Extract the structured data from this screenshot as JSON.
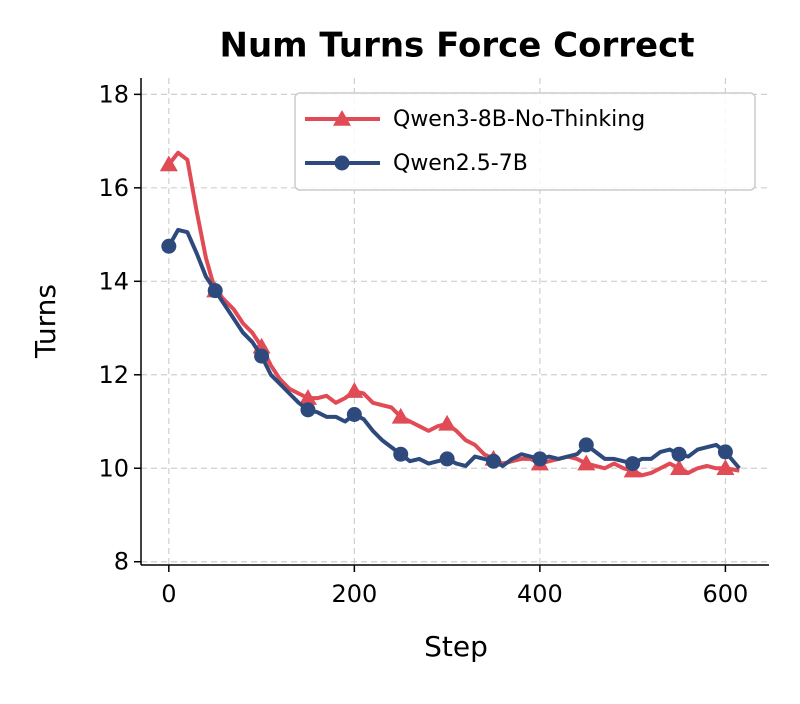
{
  "chart_data": {
    "type": "line",
    "title": "Num Turns Force Correct",
    "xlabel": "Step",
    "ylabel": "Turns",
    "x": [
      0,
      10,
      20,
      30,
      40,
      50,
      60,
      70,
      80,
      90,
      100,
      110,
      120,
      130,
      140,
      150,
      160,
      170,
      180,
      190,
      200,
      210,
      220,
      230,
      240,
      250,
      260,
      270,
      280,
      290,
      300,
      310,
      320,
      330,
      340,
      350,
      360,
      370,
      380,
      390,
      400,
      410,
      420,
      430,
      440,
      450,
      460,
      470,
      480,
      490,
      500,
      510,
      520,
      530,
      540,
      550,
      560,
      570,
      580,
      590,
      600,
      615
    ],
    "series": [
      {
        "name": "Qwen3-8B-No-Thinking",
        "color": "#e04b55",
        "marker": "triangle",
        "values": [
          16.5,
          16.75,
          16.6,
          15.5,
          14.5,
          13.8,
          13.6,
          13.4,
          13.1,
          12.9,
          12.6,
          12.2,
          11.9,
          11.7,
          11.6,
          11.5,
          11.5,
          11.55,
          11.4,
          11.5,
          11.65,
          11.6,
          11.4,
          11.35,
          11.3,
          11.1,
          11.0,
          10.9,
          10.8,
          10.9,
          10.95,
          10.8,
          10.6,
          10.5,
          10.3,
          10.2,
          10.1,
          10.15,
          10.2,
          10.2,
          10.1,
          10.15,
          10.2,
          10.25,
          10.2,
          10.1,
          10.05,
          10.0,
          10.1,
          10.0,
          9.95,
          9.85,
          9.9,
          10.0,
          10.1,
          10.0,
          9.9,
          10.0,
          10.05,
          10.0,
          10.0,
          9.95
        ]
      },
      {
        "name": "Qwen2.5-7B",
        "color": "#2e4a7d",
        "marker": "circle",
        "values": [
          14.75,
          15.1,
          15.05,
          14.6,
          14.1,
          13.8,
          13.5,
          13.2,
          12.9,
          12.7,
          12.4,
          12.0,
          11.8,
          11.6,
          11.4,
          11.25,
          11.2,
          11.1,
          11.1,
          11.0,
          11.15,
          11.05,
          10.8,
          10.6,
          10.45,
          10.3,
          10.15,
          10.2,
          10.1,
          10.15,
          10.2,
          10.1,
          10.05,
          10.25,
          10.2,
          10.15,
          10.05,
          10.2,
          10.3,
          10.25,
          10.2,
          10.25,
          10.2,
          10.25,
          10.3,
          10.5,
          10.35,
          10.2,
          10.2,
          10.15,
          10.1,
          10.2,
          10.2,
          10.35,
          10.4,
          10.3,
          10.25,
          10.4,
          10.45,
          10.5,
          10.35,
          10.0
        ]
      }
    ],
    "xlim": [
      -30,
      647
    ],
    "ylim": [
      7.93,
      18.35
    ],
    "xticks": [
      0,
      200,
      400,
      600
    ],
    "yticks": [
      8,
      10,
      12,
      14,
      16,
      18
    ],
    "grid": true,
    "legend": "upper right"
  }
}
